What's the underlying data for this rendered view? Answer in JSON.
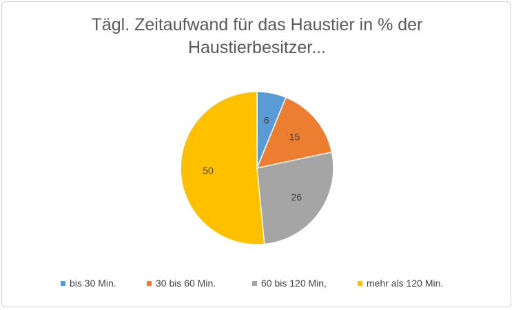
{
  "chart_data": {
    "type": "pie",
    "title_lines": [
      "Tägl. Zeitaufwand für das Haustier in % der",
      "Haustierbesitzer..."
    ],
    "slices": [
      {
        "label": "bis 30 Min.",
        "value": 6,
        "value_label": "6",
        "color": "#5b9bd5"
      },
      {
        "label": "30  bis 60 Min.",
        "value": 15,
        "value_label": "15",
        "color": "#ed7d31"
      },
      {
        "label": "60 bis 120 Min,",
        "value": 26,
        "value_label": "26",
        "color": "#a5a5a5"
      },
      {
        "label": "mehr als 120 Min.",
        "value": 50,
        "value_label": "50",
        "color": "#ffc000"
      }
    ],
    "start_angle": "12 o'clock",
    "direction": "clockwise",
    "legend_position": "bottom"
  }
}
